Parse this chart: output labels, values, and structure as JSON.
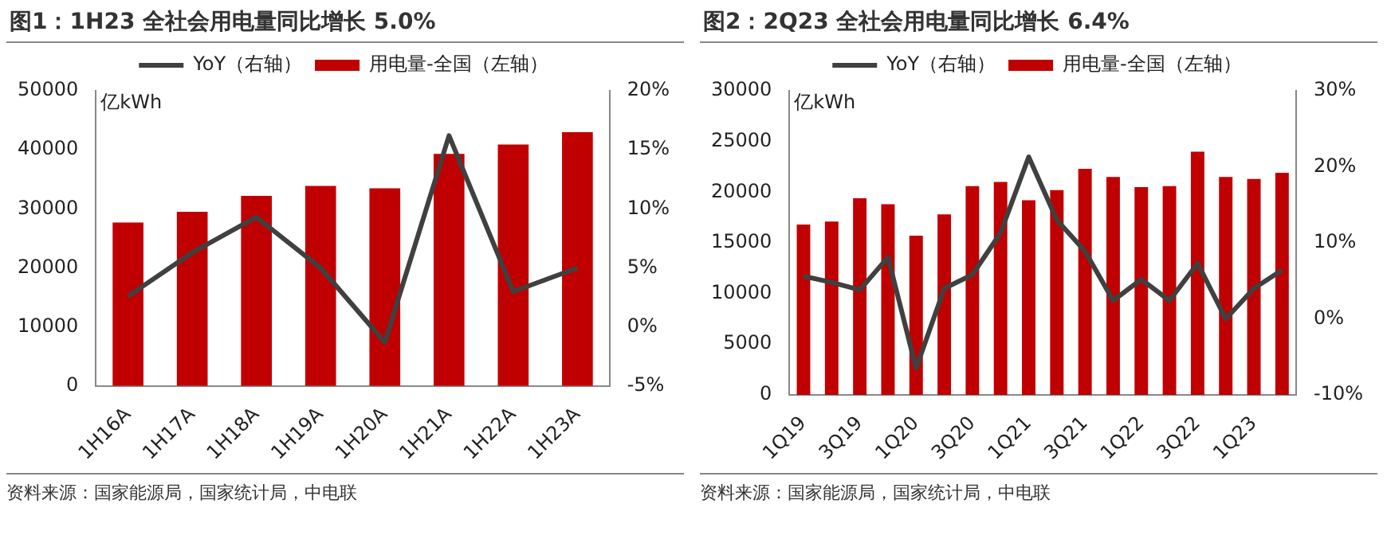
{
  "chart_data": [
    {
      "type": "bar",
      "title": "图1：1H23 全社会用电量同比增长 5.0%",
      "categories": [
        "1H16A",
        "1H17A",
        "1H18A",
        "1H19A",
        "1H20A",
        "1H21A",
        "1H22A",
        "1H23A"
      ],
      "series": [
        {
          "name": "用电量-全国（左轴）",
          "color": "#c00000",
          "values": [
            27700,
            29500,
            32200,
            33900,
            33500,
            39300,
            40900,
            43000
          ]
        },
        {
          "name": "YoY（右轴）",
          "type": "line",
          "axis": "y2",
          "color": "#404040",
          "values": [
            2.6,
            6.3,
            9.3,
            5.0,
            -1.3,
            16.2,
            3.0,
            5.0
          ]
        }
      ],
      "ylabel": "亿kWh",
      "ylim": [
        0,
        50000
      ],
      "yticks": [
        0,
        10000,
        20000,
        30000,
        40000,
        50000
      ],
      "y2lim": [
        -5,
        20
      ],
      "y2ticks": [
        {
          "value": -5,
          "label": "-5%"
        },
        {
          "value": 0,
          "label": "0%"
        },
        {
          "value": 5,
          "label": "5%"
        },
        {
          "value": 10,
          "label": "10%"
        },
        {
          "value": 15,
          "label": "15%"
        },
        {
          "value": 20,
          "label": "20%"
        }
      ],
      "legend": "top",
      "grid": false,
      "marker": "none",
      "annotations": [
        "资料来源：国家能源局，国家统计局，中电联"
      ]
    },
    {
      "type": "bar",
      "title": "图2：2Q23 全社会用电量同比增长 6.4%",
      "categories": [
        "1Q19",
        null,
        "3Q19",
        null,
        "1Q20",
        null,
        "3Q20",
        null,
        "1Q21",
        null,
        "3Q21",
        null,
        "1Q22",
        null,
        "3Q22",
        null,
        "1Q23",
        null
      ],
      "series": [
        {
          "name": "用电量-全国（左轴）",
          "color": "#c00000",
          "values": [
            16800,
            17100,
            19400,
            18800,
            15700,
            17800,
            20600,
            21000,
            19200,
            20200,
            22300,
            21500,
            20500,
            20600,
            24000,
            21500,
            21300,
            21900
          ]
        },
        {
          "name": "YoY（右轴）",
          "type": "line",
          "axis": "y2",
          "color": "#404040",
          "values": [
            5.6,
            4.8,
            3.8,
            8.1,
            -6.5,
            4.0,
            5.8,
            11.3,
            21.3,
            13.0,
            8.9,
            2.4,
            5.2,
            2.4,
            7.3,
            0.0,
            4.0,
            6.4
          ]
        }
      ],
      "ylabel": "亿kWh",
      "ylim": [
        0,
        30000
      ],
      "yticks": [
        0,
        5000,
        10000,
        15000,
        20000,
        25000,
        30000
      ],
      "y2lim": [
        -10,
        30
      ],
      "y2ticks": [
        {
          "value": -10,
          "label": "-10%"
        },
        {
          "value": 0,
          "label": "0%"
        },
        {
          "value": 10,
          "label": "10%"
        },
        {
          "value": 20,
          "label": "20%"
        },
        {
          "value": 30,
          "label": "30%"
        }
      ],
      "legend": "top",
      "grid": false,
      "marker": "none",
      "annotations": [
        "资料来源：国家能源局，国家统计局，中电联"
      ]
    }
  ]
}
